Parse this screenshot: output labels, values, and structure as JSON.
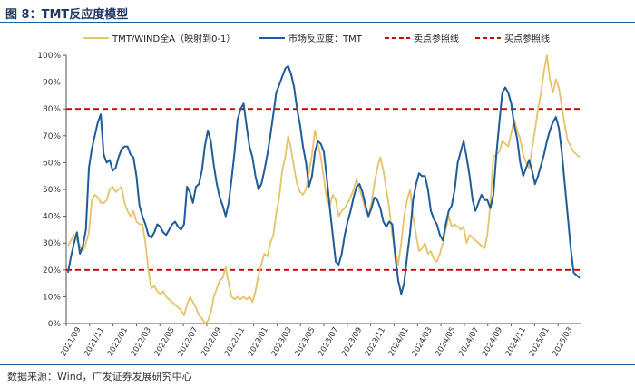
{
  "figure": {
    "title": "图 8：TMT反应度模型",
    "source": "数据来源：Wind，广发证券发展研究中心"
  },
  "chart_data": {
    "type": "line",
    "ylim": [
      0,
      100
    ],
    "y_ticks": [
      "0%",
      "10%",
      "20%",
      "30%",
      "40%",
      "50%",
      "60%",
      "70%",
      "80%",
      "90%",
      "100%"
    ],
    "x_ticks": [
      "2021/09",
      "2021/11",
      "2022/01",
      "2022/03",
      "2022/05",
      "2022/07",
      "2022/09",
      "2022/11",
      "2023/01",
      "2023/03",
      "2023/05",
      "2023/07",
      "2023/09",
      "2023/11",
      "2024/01",
      "2024/03",
      "2024/05",
      "2024/07",
      "2024/09",
      "2024/11",
      "2025/01",
      "2025/03"
    ],
    "legend_position": "top",
    "grid": false,
    "series": [
      {
        "name": "TMT/WIND全A（映射到0-1）",
        "color": "#e6c36a",
        "values": [
          29,
          31,
          33,
          31,
          29,
          27,
          30,
          34,
          46,
          48,
          47,
          45,
          45,
          46,
          50,
          51,
          49,
          50,
          51,
          45,
          42,
          40,
          42,
          38,
          37,
          37,
          30,
          20,
          13,
          14,
          12,
          11,
          12,
          10,
          9,
          8,
          7,
          6,
          5,
          3,
          7,
          10,
          8,
          6,
          3,
          2,
          0,
          1,
          4,
          10,
          13,
          16,
          17,
          21,
          15,
          10,
          9,
          10,
          9,
          10,
          9,
          10,
          8,
          12,
          18,
          22,
          26,
          25,
          30,
          33,
          41,
          47,
          57,
          62,
          70,
          65,
          58,
          52,
          49,
          48,
          50,
          56,
          63,
          72,
          67,
          62,
          54,
          46,
          44,
          48,
          46,
          40,
          42,
          43,
          45,
          47,
          50,
          54,
          50,
          47,
          42,
          40,
          45,
          52,
          58,
          62,
          57,
          50,
          43,
          33,
          27,
          22,
          30,
          40,
          46,
          50,
          40,
          33,
          27,
          28,
          30,
          26,
          27,
          24,
          23,
          26,
          30,
          35,
          40,
          36,
          37,
          36,
          35,
          36,
          30,
          33,
          32,
          31,
          30,
          29,
          28,
          33,
          45,
          62,
          63,
          64,
          68,
          67,
          66,
          71,
          76,
          72,
          69,
          63,
          60,
          58,
          65,
          72,
          80,
          86,
          94,
          100,
          91,
          86,
          91,
          88,
          81,
          74,
          68,
          66,
          64,
          63,
          62
        ]
      },
      {
        "name": "市场反应度：TMT",
        "color": "#1f5c99",
        "values": [
          19,
          25,
          30,
          34,
          26,
          29,
          35,
          58,
          65,
          70,
          75,
          78,
          63,
          60,
          61,
          57,
          58,
          62,
          65,
          66,
          66,
          63,
          62,
          55,
          44,
          40,
          37,
          33,
          32,
          34,
          37,
          36,
          34,
          33,
          35,
          37,
          38,
          36,
          35,
          37,
          51,
          49,
          45,
          51,
          52,
          57,
          66,
          72,
          68,
          59,
          52,
          47,
          44,
          40,
          45,
          54,
          64,
          76,
          80,
          82,
          74,
          66,
          62,
          55,
          50,
          52,
          57,
          63,
          70,
          78,
          86,
          89,
          92,
          95,
          96,
          93,
          88,
          80,
          74,
          66,
          60,
          51,
          55,
          64,
          68,
          67,
          64,
          54,
          43,
          33,
          23,
          22,
          26,
          33,
          38,
          42,
          47,
          51,
          52,
          49,
          44,
          40,
          43,
          47,
          46,
          43,
          38,
          36,
          38,
          37,
          25,
          16,
          11,
          15,
          25,
          34,
          46,
          52,
          56,
          55,
          55,
          50,
          42,
          39,
          37,
          33,
          31,
          37,
          42,
          44,
          50,
          60,
          64,
          68,
          62,
          55,
          46,
          42,
          45,
          48,
          46,
          46,
          43,
          48,
          63,
          75,
          86,
          88,
          86,
          82,
          74,
          69,
          60,
          55,
          58,
          61,
          57,
          52,
          55,
          59,
          63,
          68,
          72,
          75,
          77,
          73,
          64,
          52,
          40,
          28,
          19,
          18,
          17
        ]
      },
      {
        "name": "卖点参照线",
        "color": "#cc0000",
        "values": [
          80
        ]
      },
      {
        "name": "买点参照线",
        "color": "#cc0000",
        "values": [
          20
        ]
      }
    ]
  }
}
